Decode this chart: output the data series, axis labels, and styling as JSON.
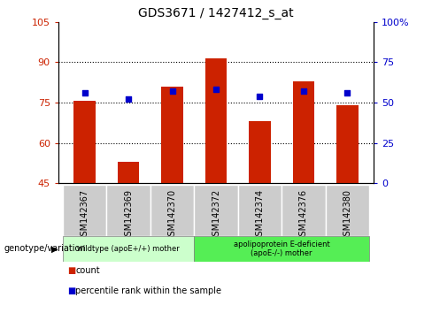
{
  "title": "GDS3671 / 1427412_s_at",
  "categories": [
    "GSM142367",
    "GSM142369",
    "GSM142370",
    "GSM142372",
    "GSM142374",
    "GSM142376",
    "GSM142380"
  ],
  "bar_values": [
    75.5,
    53.0,
    81.0,
    91.5,
    68.0,
    83.0,
    74.0
  ],
  "percentile_values": [
    56,
    52,
    57,
    58,
    54,
    57,
    56
  ],
  "bar_bottom": 45,
  "ylim_left": [
    45,
    105
  ],
  "ylim_right": [
    0,
    100
  ],
  "yticks_left": [
    45,
    60,
    75,
    90,
    105
  ],
  "yticks_right": [
    0,
    25,
    50,
    75,
    100
  ],
  "yticklabels_right": [
    "0",
    "25",
    "50",
    "75",
    "100%"
  ],
  "bar_color": "#cc2200",
  "percentile_color": "#0000cc",
  "group1_indices": [
    0,
    1,
    2
  ],
  "group2_indices": [
    3,
    4,
    5,
    6
  ],
  "group1_label": "wildtype (apoE+/+) mother",
  "group2_label": "apolipoprotein E-deficient\n(apoE-/-) mother",
  "group_label_prefix": "genotype/variation",
  "group1_color": "#ccffcc",
  "group2_color": "#55ee55",
  "legend_bar_label": "count",
  "legend_dot_label": "percentile rank within the sample",
  "gridline_color": "black",
  "tick_color_left": "#cc2200",
  "tick_color_right": "#0000cc",
  "xticklabel_area_color": "#cccccc",
  "bar_width": 0.5
}
